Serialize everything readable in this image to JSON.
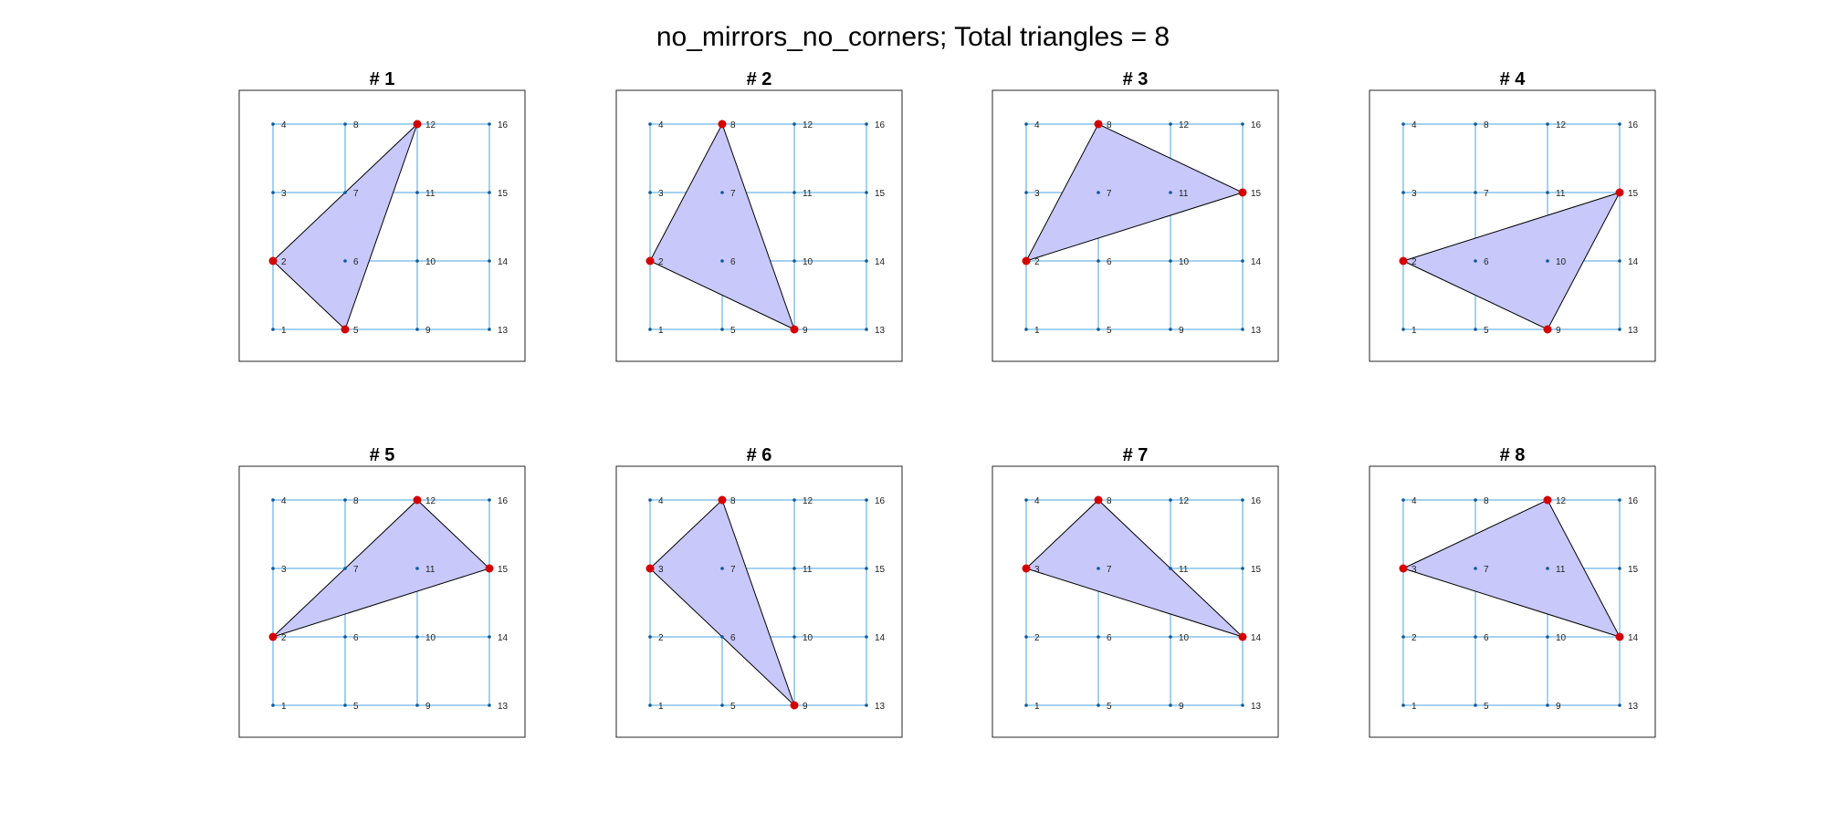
{
  "figure": {
    "title": "no_mirrors_no_corners; Total triangles = 8"
  },
  "colors": {
    "grid": "#4aa3df",
    "dot": "#0a5a9c",
    "triangle_fill": "#c8c8fa",
    "triangle_edge": "#000000",
    "vertex": "#d40000"
  },
  "grid": {
    "columns": [
      [
        1,
        2,
        3,
        4
      ],
      [
        5,
        6,
        7,
        8
      ],
      [
        9,
        10,
        11,
        12
      ],
      [
        13,
        14,
        15,
        16
      ]
    ],
    "node_labels": [
      "1",
      "2",
      "3",
      "4",
      "5",
      "6",
      "7",
      "8",
      "9",
      "10",
      "11",
      "12",
      "13",
      "14",
      "15",
      "16"
    ]
  },
  "panels": [
    {
      "title": "# 1",
      "triangle": [
        2,
        5,
        12
      ]
    },
    {
      "title": "# 2",
      "triangle": [
        2,
        8,
        9
      ]
    },
    {
      "title": "# 3",
      "triangle": [
        2,
        8,
        15
      ]
    },
    {
      "title": "# 4",
      "triangle": [
        2,
        9,
        15
      ]
    },
    {
      "title": "# 5",
      "triangle": [
        2,
        12,
        15
      ]
    },
    {
      "title": "# 6",
      "triangle": [
        3,
        8,
        9
      ]
    },
    {
      "title": "# 7",
      "triangle": [
        3,
        8,
        14
      ]
    },
    {
      "title": "# 8",
      "triangle": [
        3,
        12,
        14
      ]
    }
  ]
}
